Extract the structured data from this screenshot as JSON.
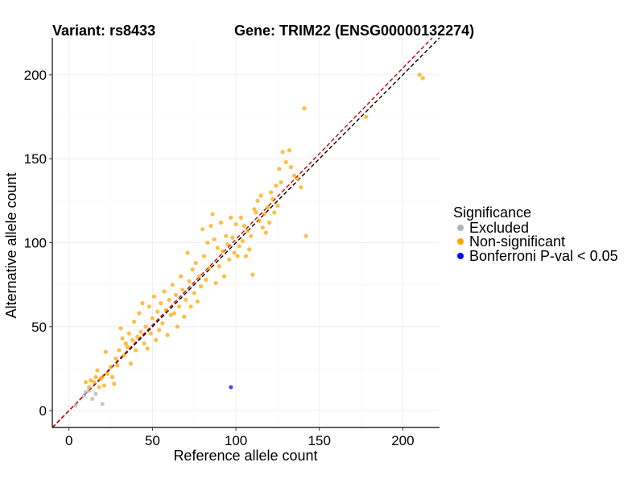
{
  "header": {
    "variant_label": "Variant: rs8433",
    "gene_label": "Gene: TRIM22 (ENSG00000132274)"
  },
  "chart_data": {
    "type": "scatter",
    "title": "Variant: rs8433 — Gene: TRIM22 (ENSG00000132274)",
    "xlabel": "Reference allele count",
    "ylabel": "Alternative allele count",
    "xlim": [
      -10,
      222
    ],
    "ylim": [
      -10,
      222
    ],
    "x_ticks": [
      0,
      50,
      100,
      150,
      200
    ],
    "y_ticks": [
      0,
      50,
      100,
      150,
      200
    ],
    "grid": true,
    "reference_lines": [
      {
        "name": "identity",
        "slope": 1,
        "intercept": 0,
        "color": "#000000",
        "style": "dashed"
      },
      {
        "name": "fit",
        "slope": 1.02,
        "intercept": 0,
        "color": "#cc0000",
        "style": "dashed"
      }
    ],
    "legend": {
      "title": "Significance",
      "position": "right",
      "items": [
        {
          "label": "Excluded",
          "color": "#b3b3b3"
        },
        {
          "label": "Non-significant",
          "color": "#ffa500"
        },
        {
          "label": "Bonferroni P-val < 0.05",
          "color": "#0000ff"
        }
      ]
    },
    "series": [
      {
        "name": "Excluded",
        "color": "#b3b3b3",
        "points": [
          [
            4,
            3
          ],
          [
            9,
            9
          ],
          [
            10,
            11
          ],
          [
            12,
            12
          ],
          [
            14,
            7
          ],
          [
            16,
            10
          ],
          [
            20,
            4
          ]
        ]
      },
      {
        "name": "Non-significant",
        "color": "#ffa500",
        "points": [
          [
            10,
            17
          ],
          [
            12,
            14
          ],
          [
            13,
            18
          ],
          [
            15,
            17
          ],
          [
            16,
            20
          ],
          [
            17,
            24
          ],
          [
            18,
            14
          ],
          [
            19,
            19
          ],
          [
            20,
            20
          ],
          [
            21,
            15
          ],
          [
            22,
            35
          ],
          [
            23,
            22
          ],
          [
            25,
            26
          ],
          [
            26,
            20
          ],
          [
            27,
            16
          ],
          [
            28,
            31
          ],
          [
            29,
            27
          ],
          [
            30,
            36
          ],
          [
            31,
            49
          ],
          [
            32,
            43
          ],
          [
            33,
            33
          ],
          [
            34,
            40
          ],
          [
            35,
            38
          ],
          [
            36,
            46
          ],
          [
            37,
            28
          ],
          [
            38,
            42
          ],
          [
            39,
            53
          ],
          [
            40,
            36
          ],
          [
            41,
            44
          ],
          [
            42,
            58
          ],
          [
            43,
            47
          ],
          [
            44,
            64
          ],
          [
            45,
            40
          ],
          [
            46,
            50
          ],
          [
            47,
            37
          ],
          [
            48,
            62
          ],
          [
            49,
            46
          ],
          [
            50,
            55
          ],
          [
            51,
            68
          ],
          [
            52,
            42
          ],
          [
            53,
            59
          ],
          [
            54,
            48
          ],
          [
            55,
            64
          ],
          [
            56,
            52
          ],
          [
            57,
            71
          ],
          [
            58,
            60
          ],
          [
            59,
            45
          ],
          [
            60,
            66
          ],
          [
            61,
            57
          ],
          [
            62,
            75
          ],
          [
            63,
            58
          ],
          [
            64,
            69
          ],
          [
            65,
            50
          ],
          [
            66,
            62
          ],
          [
            67,
            80
          ],
          [
            68,
            72
          ],
          [
            69,
            56
          ],
          [
            70,
            66
          ],
          [
            71,
            94
          ],
          [
            72,
            77
          ],
          [
            73,
            62
          ],
          [
            74,
            84
          ],
          [
            75,
            70
          ],
          [
            76,
            88
          ],
          [
            77,
            65
          ],
          [
            78,
            80
          ],
          [
            79,
            74
          ],
          [
            80,
            108
          ],
          [
            81,
            92
          ],
          [
            82,
            78
          ],
          [
            83,
            100
          ],
          [
            84,
            85
          ],
          [
            85,
            110
          ],
          [
            86,
            117
          ],
          [
            87,
            102
          ],
          [
            88,
            76
          ],
          [
            89,
            97
          ],
          [
            90,
            86
          ],
          [
            91,
            112
          ],
          [
            92,
            95
          ],
          [
            93,
            80
          ],
          [
            94,
            104
          ],
          [
            95,
            99
          ],
          [
            96,
            90
          ],
          [
            97,
            115
          ],
          [
            98,
            103
          ],
          [
            99,
            94
          ],
          [
            100,
            111
          ],
          [
            101,
            92
          ],
          [
            102,
            98
          ],
          [
            103,
            115
          ],
          [
            104,
            101
          ],
          [
            105,
            110
          ],
          [
            106,
            92
          ],
          [
            107,
            107
          ],
          [
            108,
            96
          ],
          [
            109,
            104
          ],
          [
            110,
            81
          ],
          [
            111,
            120
          ],
          [
            112,
            118
          ],
          [
            113,
            125
          ],
          [
            114,
            113
          ],
          [
            115,
            128
          ],
          [
            116,
            109
          ],
          [
            117,
            117
          ],
          [
            118,
            106
          ],
          [
            119,
            121
          ],
          [
            120,
            112
          ],
          [
            121,
            130
          ],
          [
            122,
            126
          ],
          [
            123,
            118
          ],
          [
            124,
            134
          ],
          [
            125,
            122
          ],
          [
            126,
            144
          ],
          [
            127,
            136
          ],
          [
            128,
            154
          ],
          [
            130,
            148
          ],
          [
            132,
            155
          ],
          [
            133,
            145
          ],
          [
            135,
            140
          ],
          [
            137,
            138
          ],
          [
            139,
            133
          ],
          [
            141,
            180
          ],
          [
            142,
            104
          ],
          [
            178,
            175
          ],
          [
            210,
            200
          ],
          [
            212,
            198
          ]
        ]
      },
      {
        "name": "Bonferroni P-val < 0.05",
        "color": "#0000ff",
        "points": [
          [
            97,
            14
          ]
        ]
      }
    ]
  }
}
